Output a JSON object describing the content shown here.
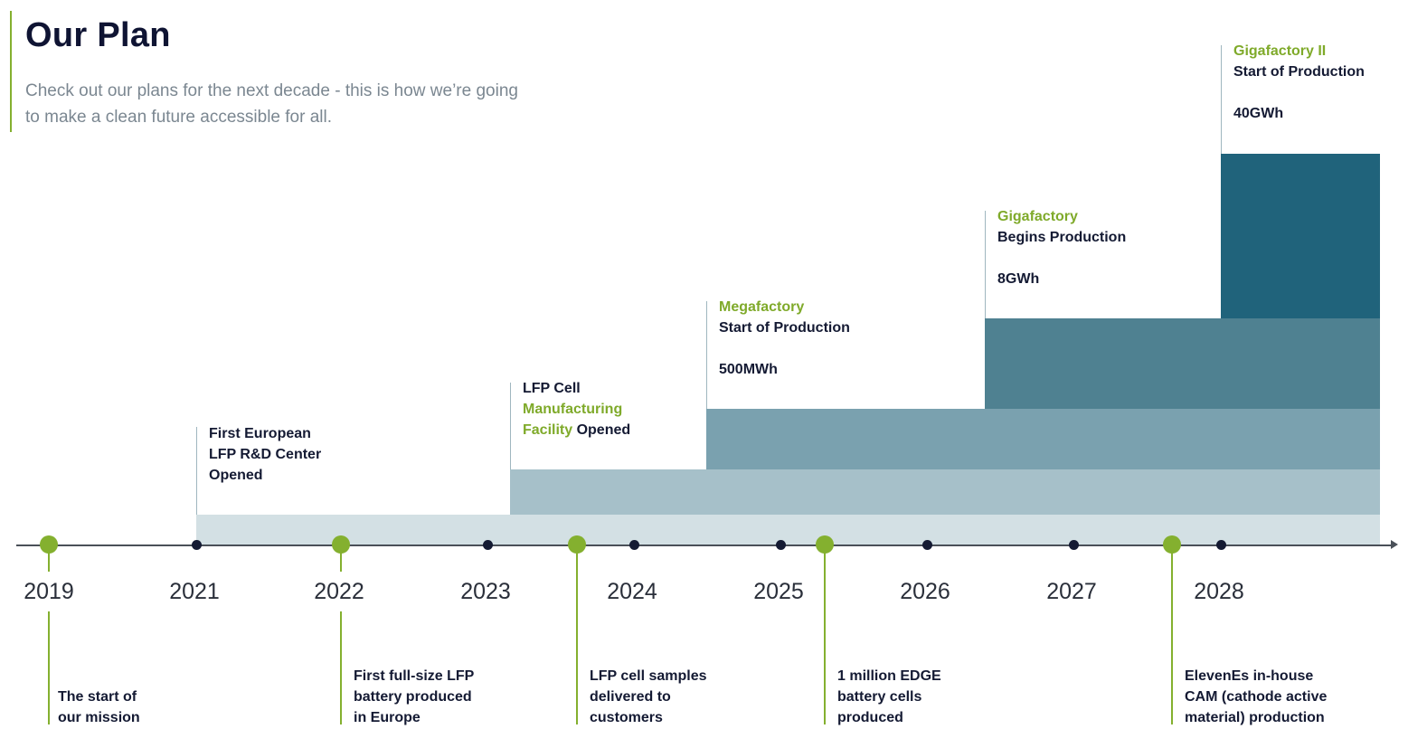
{
  "header": {
    "title": "Our Plan",
    "subtitle": "Check out our plans for the next decade - this is how we’re going to make a clean future accessible for all."
  },
  "colors": {
    "accent_green": "#84b02f",
    "band_1": "#d3e0e4",
    "band_2": "#a6c0c9",
    "band_3": "#7aa1af",
    "band_4": "#4f8191",
    "band_5": "#20637b",
    "navy": "#141a33"
  },
  "timeline": {
    "years": [
      "2019",
      "2021",
      "2022",
      "2023",
      "2024",
      "2025",
      "2026",
      "2027",
      "2028"
    ]
  },
  "milestones": {
    "rd_center": {
      "line1": "First European",
      "line2": "LFP R&D Center",
      "line3": "Opened"
    },
    "cell_facility": {
      "line1": "LFP Cell",
      "line2": "Manufacturing",
      "line3a": "Facility",
      "line3b": " Opened"
    },
    "megafactory": {
      "name": "Megafactory",
      "status": "Start of Production",
      "capacity": "500MWh"
    },
    "gigafactory": {
      "name": "Gigafactory",
      "status": "Begins Production",
      "capacity": "8GWh"
    },
    "gigafactory2": {
      "name": "Gigafactory II",
      "status": "Start of Production",
      "capacity": "40GWh"
    }
  },
  "events": {
    "e2019": {
      "line1": "The start of",
      "line2": "our mission"
    },
    "e2022": {
      "line1": "First full-size LFP",
      "line2": "battery produced",
      "line3": "in Europe"
    },
    "e2023": {
      "line1": "LFP cell samples",
      "line2": "delivered to",
      "line3": "customers"
    },
    "e2025": {
      "line1": "1 million EDGE",
      "line2": "battery cells",
      "line3": "produced"
    },
    "e2027": {
      "line1": "ElevenEs in-house",
      "line2": "CAM (cathode active",
      "line3": "material) production"
    }
  }
}
